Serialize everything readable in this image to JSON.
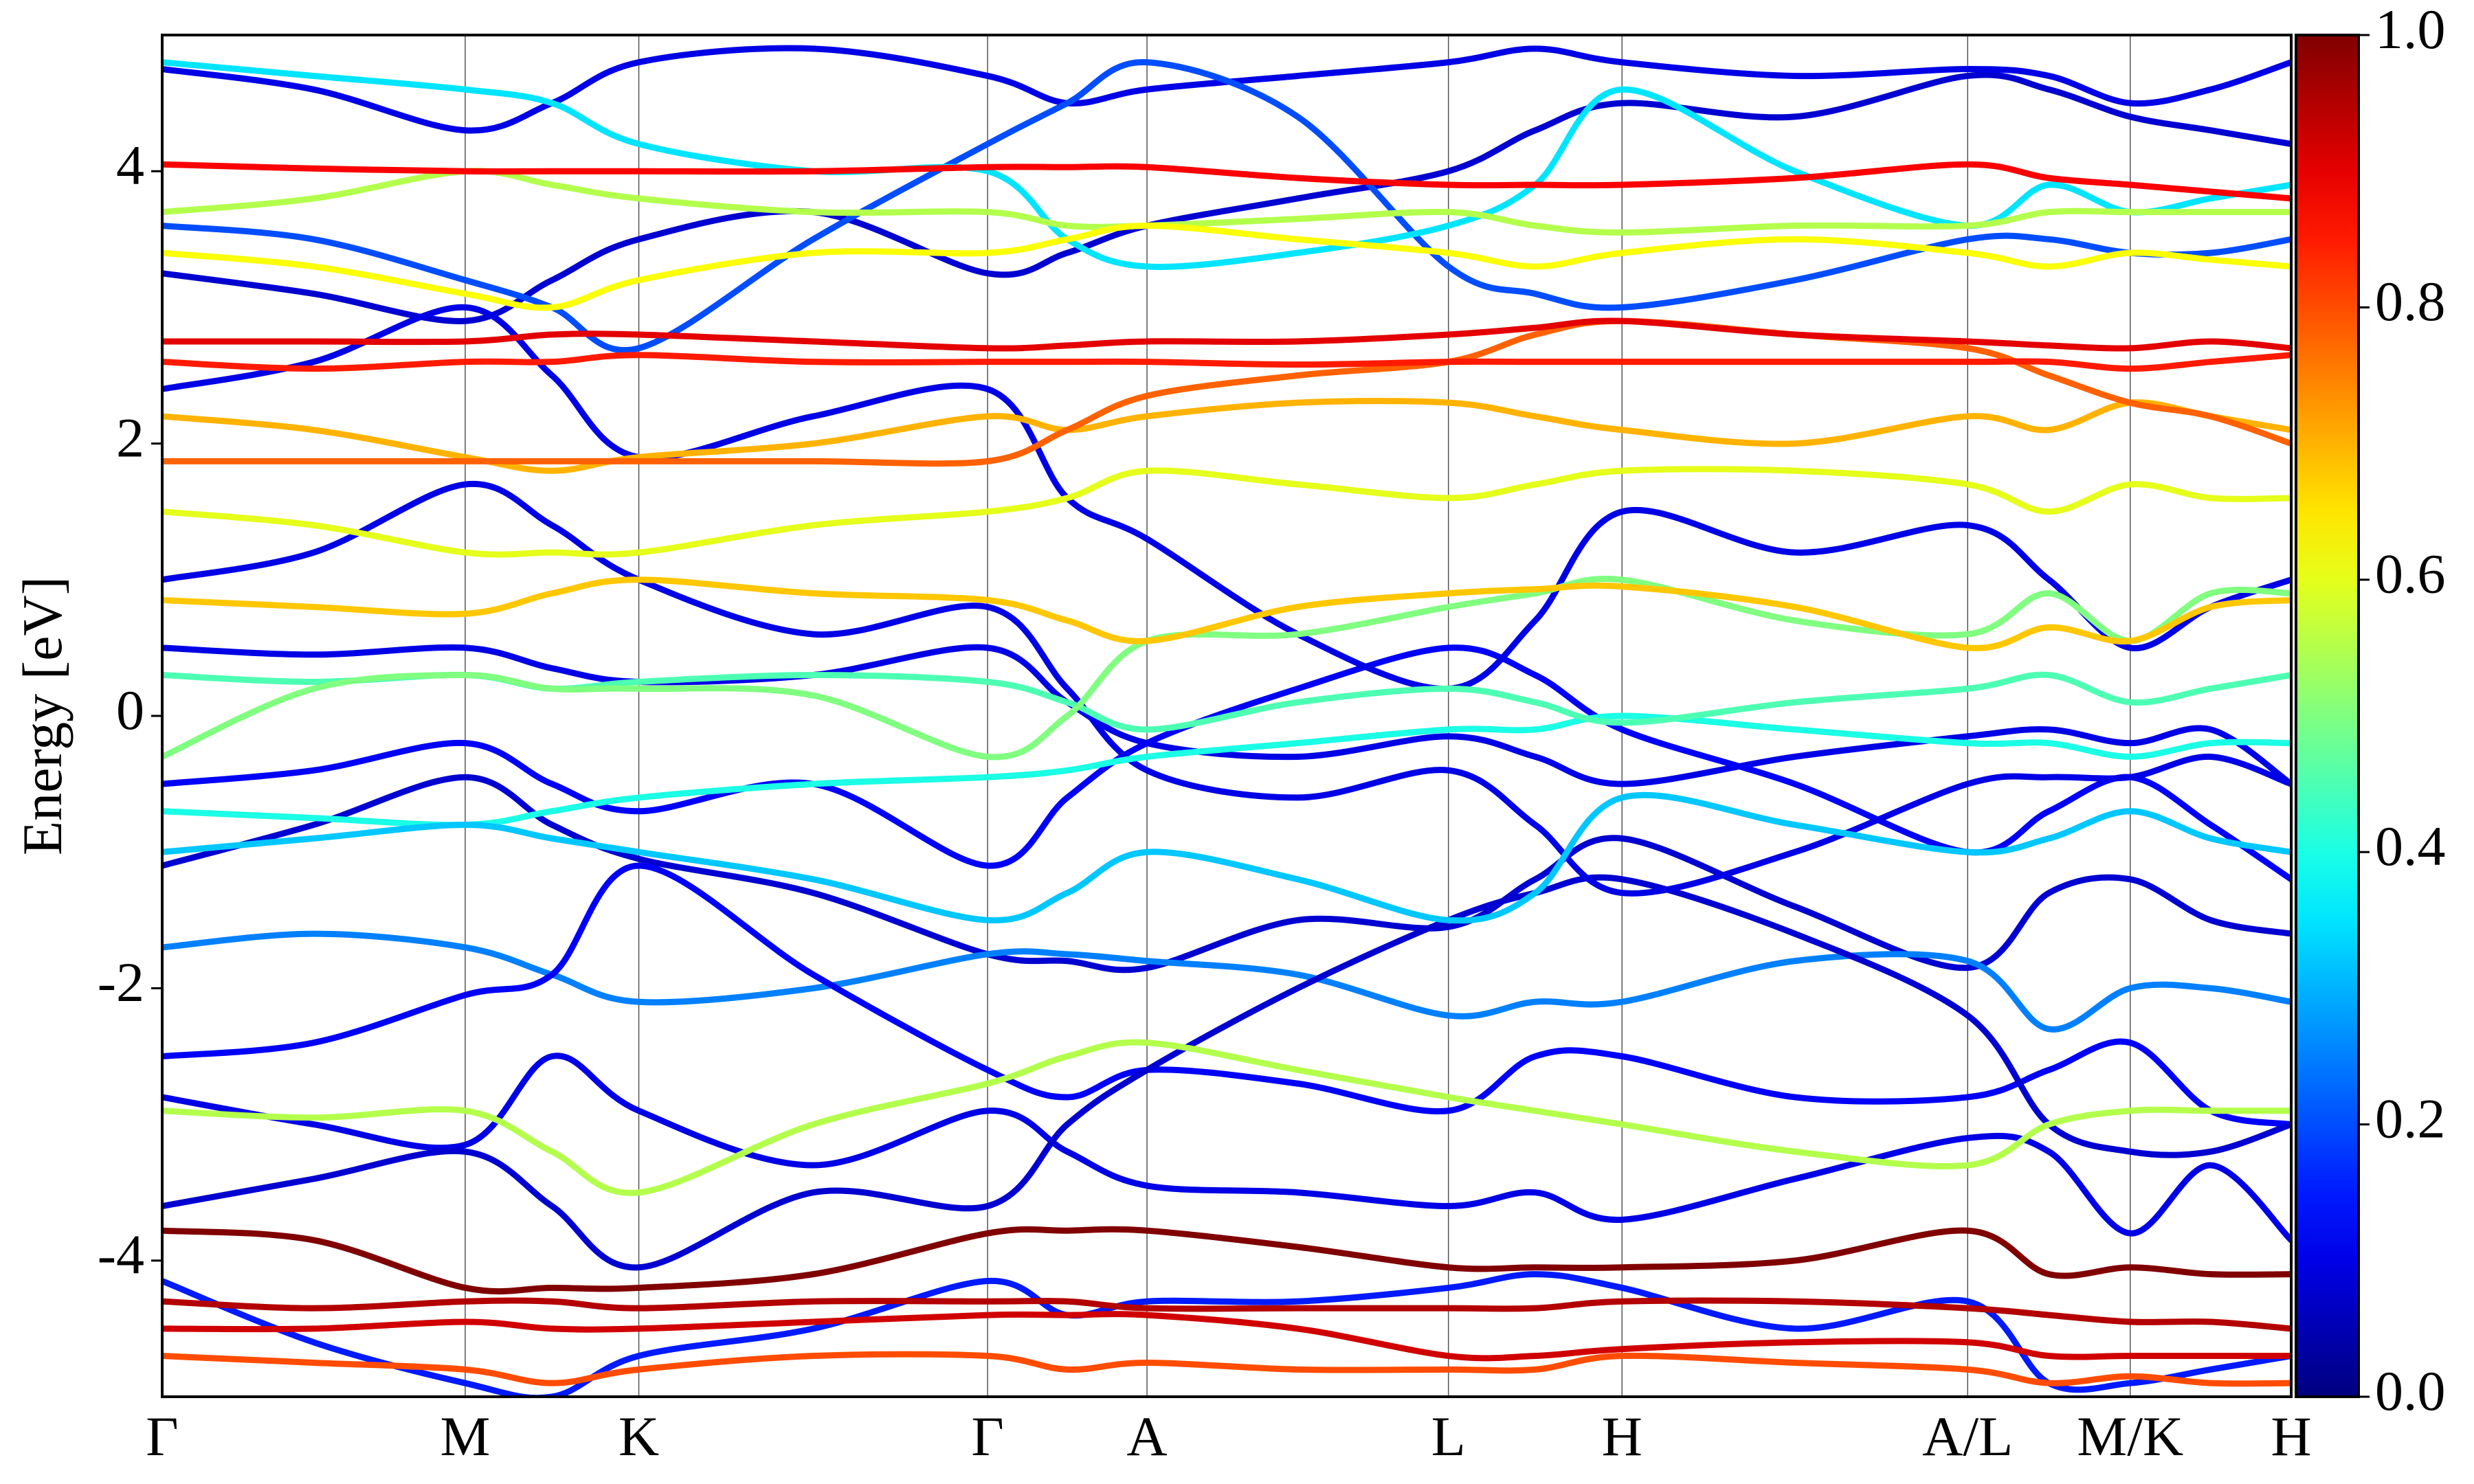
{
  "chart_data": {
    "type": "bands",
    "y_label": "Energy [eV]",
    "x": [
      0,
      0.96,
      1.92,
      2.47,
      3.02,
      4.125,
      5.23,
      5.735,
      6.24,
      7.195,
      8.15,
      8.7,
      9.25,
      10.345,
      11.44,
      11.955,
      12.47,
      12.98,
      13.49
    ],
    "xlim": [
      0,
      13.49
    ],
    "xticks": [
      {
        "value": 0,
        "label": "Γ"
      },
      {
        "value": 1.92,
        "label": "M"
      },
      {
        "value": 3.02,
        "label": "K"
      },
      {
        "value": 5.23,
        "label": "Γ"
      },
      {
        "value": 6.24,
        "label": "A"
      },
      {
        "value": 8.15,
        "label": "L"
      },
      {
        "value": 9.25,
        "label": "H"
      },
      {
        "value": 11.44,
        "label": "A/L"
      },
      {
        "value": 12.47,
        "label": "M/K"
      },
      {
        "value": 13.49,
        "label": "H"
      }
    ],
    "ylim": [
      -5,
      5
    ],
    "yticks": [
      -4,
      -2,
      0,
      2,
      4
    ],
    "grid": true,
    "colormap": "jet",
    "colorbar": {
      "clim": [
        0,
        1
      ],
      "ticks": [
        {
          "value": 0,
          "label": "0.0"
        },
        0.2,
        0.4,
        0.6,
        0.8,
        {
          "value": 1,
          "label": "1.0"
        }
      ]
    },
    "series": [
      {
        "weight": 0.1,
        "values": [
          0.5,
          0.45,
          0.5,
          0.35,
          0.25,
          0.3,
          0.5,
          0.1,
          -0.2,
          -0.3,
          -0.15,
          -0.3,
          -0.5,
          -0.3,
          -0.15,
          -0.1,
          -0.2,
          -0.1,
          -0.5
        ]
      },
      {
        "weight": 0.12,
        "values": [
          -0.5,
          -0.4,
          -0.2,
          -0.5,
          -0.7,
          -0.5,
          -1.1,
          -0.6,
          -0.2,
          0.2,
          0.5,
          0.3,
          -0.1,
          -0.5,
          -1.0,
          -0.7,
          -0.45,
          -0.8,
          -1.2
        ]
      },
      {
        "weight": 0.08,
        "values": [
          -1.1,
          -0.8,
          -0.45,
          -0.8,
          -1.05,
          -1.3,
          -1.75,
          -1.8,
          -1.85,
          -1.5,
          -1.55,
          -1.2,
          -0.9,
          -1.4,
          -1.85,
          -1.3,
          -1.2,
          -1.5,
          -1.6
        ]
      },
      {
        "weight": 0.25,
        "values": [
          -1.7,
          -1.6,
          -1.7,
          -1.9,
          -2.1,
          -2.0,
          -1.75,
          -1.75,
          -1.8,
          -1.9,
          -2.2,
          -2.1,
          -2.1,
          -1.8,
          -1.8,
          -2.3,
          -2.0,
          -2.0,
          -2.1
        ]
      },
      {
        "weight": 0.12,
        "values": [
          -2.5,
          -2.4,
          -2.05,
          -1.9,
          -1.1,
          -1.9,
          -2.6,
          -2.8,
          -2.6,
          -2.7,
          -2.9,
          -2.5,
          -2.5,
          -2.8,
          -2.8,
          -2.6,
          -2.4,
          -2.9,
          -3.0
        ]
      },
      {
        "weight": 0.1,
        "values": [
          -2.8,
          -3.0,
          -3.15,
          -2.5,
          -2.9,
          -3.3,
          -2.9,
          -3.2,
          -3.45,
          -3.5,
          -3.6,
          -3.5,
          -3.7,
          -3.4,
          -3.1,
          -3.2,
          -3.8,
          -3.3,
          -3.85
        ]
      },
      {
        "weight": 0.08,
        "values": [
          -3.6,
          -3.4,
          -3.2,
          -3.6,
          -4.05,
          -3.5,
          -3.6,
          -3.0,
          -2.6,
          -2.0,
          -1.5,
          -1.3,
          -1.2,
          -1.6,
          -2.2,
          -3.0,
          -3.2,
          -3.2,
          -3.0
        ]
      },
      {
        "weight": 0.15,
        "values": [
          -4.15,
          -4.6,
          -4.9,
          -5.0,
          -4.7,
          -4.5,
          -4.15,
          -4.4,
          -4.3,
          -4.3,
          -4.2,
          -4.1,
          -4.2,
          -4.5,
          -4.3,
          -4.9,
          -4.9,
          -4.8,
          -4.7
        ]
      },
      {
        "weight": 0.08,
        "values": [
          3.25,
          3.1,
          2.9,
          3.2,
          3.5,
          3.7,
          3.25,
          3.4,
          3.6,
          3.8,
          4.0,
          4.3,
          4.5,
          4.4,
          4.7,
          4.6,
          4.4,
          4.3,
          4.2
        ]
      },
      {
        "weight": 0.1,
        "values": [
          4.75,
          4.6,
          4.3,
          4.5,
          4.8,
          4.9,
          4.7,
          4.5,
          4.6,
          4.7,
          4.8,
          4.9,
          4.8,
          4.7,
          4.75,
          4.7,
          4.5,
          4.6,
          4.8
        ]
      },
      {
        "weight": 0.1,
        "values": [
          1.0,
          1.2,
          1.7,
          1.4,
          1.0,
          0.6,
          0.8,
          0.2,
          -0.4,
          -0.6,
          -0.4,
          -0.8,
          -1.3,
          -1.0,
          -0.5,
          -0.45,
          -0.45,
          -0.3,
          -0.5
        ]
      },
      {
        "weight": 0.1,
        "values": [
          2.4,
          2.6,
          3.0,
          2.5,
          1.9,
          2.2,
          2.4,
          1.6,
          1.3,
          0.6,
          0.2,
          0.7,
          1.5,
          1.2,
          1.4,
          1.0,
          0.5,
          0.8,
          1.0
        ]
      },
      {
        "weight": 0.2,
        "values": [
          3.6,
          3.5,
          3.2,
          3.0,
          2.7,
          3.5,
          4.2,
          4.5,
          4.8,
          4.4,
          3.3,
          3.1,
          3.0,
          3.2,
          3.5,
          3.5,
          3.4,
          3.4,
          3.5
        ]
      },
      {
        "weight": 0.4,
        "values": [
          -0.7,
          -0.75,
          -0.8,
          -0.7,
          -0.6,
          -0.5,
          -0.45,
          -0.4,
          -0.3,
          -0.2,
          -0.1,
          -0.1,
          0.0,
          -0.1,
          -0.2,
          -0.2,
          -0.3,
          -0.2,
          -0.2
        ]
      },
      {
        "weight": 0.32,
        "values": [
          -1.0,
          -0.9,
          -0.8,
          -0.9,
          -1.0,
          -1.2,
          -1.5,
          -1.3,
          -1.0,
          -1.2,
          -1.5,
          -1.3,
          -0.6,
          -0.8,
          -1.0,
          -0.9,
          -0.7,
          -0.9,
          -1.0
        ]
      },
      {
        "weight": 0.45,
        "values": [
          0.3,
          0.25,
          0.3,
          0.2,
          0.25,
          0.3,
          0.25,
          0.1,
          -0.1,
          0.1,
          0.2,
          0.1,
          -0.05,
          0.1,
          0.2,
          0.3,
          0.1,
          0.2,
          0.3
        ]
      },
      {
        "weight": 0.55,
        "values": [
          -2.9,
          -2.95,
          -2.9,
          -3.2,
          -3.5,
          -3.0,
          -2.7,
          -2.5,
          -2.4,
          -2.6,
          -2.8,
          -2.9,
          -3.0,
          -3.2,
          -3.3,
          -3.0,
          -2.9,
          -2.9,
          -2.9
        ]
      },
      {
        "weight": 0.35,
        "values": [
          4.8,
          4.7,
          4.6,
          4.5,
          4.2,
          4.0,
          4.0,
          3.5,
          3.3,
          3.4,
          3.6,
          3.9,
          4.6,
          4.0,
          3.6,
          3.9,
          3.7,
          3.8,
          3.9
        ]
      },
      {
        "weight": 0.55,
        "values": [
          3.7,
          3.8,
          4.0,
          3.9,
          3.8,
          3.7,
          3.7,
          3.6,
          3.6,
          3.65,
          3.7,
          3.6,
          3.55,
          3.6,
          3.6,
          3.7,
          3.7,
          3.7,
          3.7
        ]
      },
      {
        "weight": 0.6,
        "values": [
          1.5,
          1.4,
          1.2,
          1.2,
          1.2,
          1.4,
          1.5,
          1.6,
          1.8,
          1.7,
          1.6,
          1.7,
          1.8,
          1.8,
          1.7,
          1.5,
          1.7,
          1.6,
          1.6
        ]
      },
      {
        "weight": 0.62,
        "values": [
          3.4,
          3.3,
          3.1,
          3.0,
          3.2,
          3.4,
          3.4,
          3.5,
          3.6,
          3.5,
          3.4,
          3.3,
          3.4,
          3.5,
          3.4,
          3.3,
          3.4,
          3.35,
          3.3
        ]
      },
      {
        "weight": 0.5,
        "values": [
          -0.3,
          0.2,
          0.3,
          0.2,
          0.2,
          0.15,
          -0.3,
          0.0,
          0.55,
          0.6,
          0.8,
          0.9,
          1.0,
          0.7,
          0.6,
          0.9,
          0.55,
          0.9,
          0.9
        ]
      },
      {
        "weight": 0.68,
        "values": [
          0.85,
          0.8,
          0.75,
          0.9,
          1.0,
          0.9,
          0.85,
          0.7,
          0.55,
          0.8,
          0.9,
          0.93,
          0.95,
          0.8,
          0.5,
          0.65,
          0.55,
          0.8,
          0.85
        ]
      },
      {
        "weight": 0.7,
        "values": [
          2.2,
          2.1,
          1.9,
          1.8,
          1.9,
          2.0,
          2.2,
          2.1,
          2.2,
          2.3,
          2.3,
          2.2,
          2.1,
          2.0,
          2.2,
          2.1,
          2.3,
          2.2,
          2.1
        ]
      },
      {
        "weight": 0.78,
        "values": [
          1.87,
          1.87,
          1.87,
          1.87,
          1.87,
          1.87,
          1.87,
          2.1,
          2.35,
          2.5,
          2.6,
          2.8,
          2.9,
          2.8,
          2.7,
          2.5,
          2.3,
          2.2,
          2.0
        ]
      },
      {
        "weight": 0.8,
        "values": [
          -4.7,
          -4.75,
          -4.8,
          -4.9,
          -4.8,
          -4.7,
          -4.7,
          -4.8,
          -4.75,
          -4.8,
          -4.8,
          -4.8,
          -4.7,
          -4.75,
          -4.8,
          -4.9,
          -4.85,
          -4.9,
          -4.9
        ]
      },
      {
        "weight": 0.85,
        "values": [
          2.6,
          2.55,
          2.6,
          2.6,
          2.65,
          2.6,
          2.6,
          2.6,
          2.6,
          2.58,
          2.6,
          2.6,
          2.6,
          2.6,
          2.6,
          2.6,
          2.55,
          2.6,
          2.65
        ]
      },
      {
        "weight": 0.88,
        "values": [
          4.05,
          4.02,
          4.0,
          4.0,
          4.0,
          4.0,
          4.03,
          4.03,
          4.03,
          3.95,
          3.9,
          3.9,
          3.9,
          3.95,
          4.05,
          3.95,
          3.9,
          3.85,
          3.8
        ]
      },
      {
        "weight": 0.9,
        "values": [
          2.75,
          2.75,
          2.75,
          2.8,
          2.8,
          2.75,
          2.7,
          2.72,
          2.75,
          2.75,
          2.8,
          2.85,
          2.9,
          2.8,
          2.75,
          2.72,
          2.7,
          2.75,
          2.7
        ]
      },
      {
        "weight": 0.92,
        "values": [
          -4.5,
          -4.5,
          -4.45,
          -4.5,
          -4.5,
          -4.45,
          -4.4,
          -4.4,
          -4.4,
          -4.5,
          -4.7,
          -4.7,
          -4.65,
          -4.6,
          -4.6,
          -4.7,
          -4.7,
          -4.7,
          -4.7
        ]
      },
      {
        "weight": 0.95,
        "values": [
          -4.3,
          -4.35,
          -4.3,
          -4.3,
          -4.35,
          -4.3,
          -4.3,
          -4.3,
          -4.35,
          -4.35,
          -4.35,
          -4.35,
          -4.3,
          -4.3,
          -4.35,
          -4.4,
          -4.45,
          -4.45,
          -4.5
        ]
      },
      {
        "weight": 1.0,
        "values": [
          -3.78,
          -3.85,
          -4.2,
          -4.2,
          -4.2,
          -4.1,
          -3.8,
          -3.78,
          -3.78,
          -3.9,
          -4.05,
          -4.05,
          -4.05,
          -4.0,
          -3.78,
          -4.1,
          -4.05,
          -4.1,
          -4.1
        ]
      }
    ]
  }
}
